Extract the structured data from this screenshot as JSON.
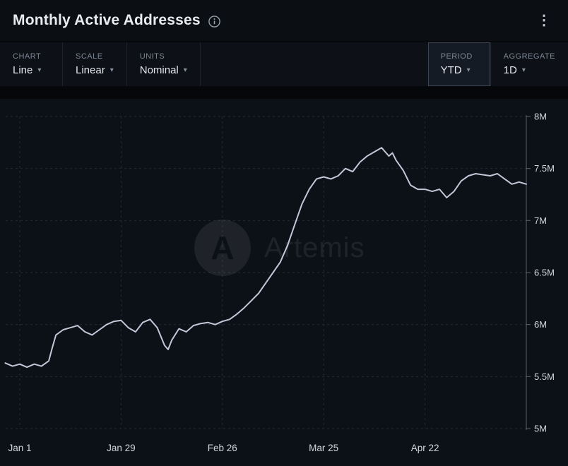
{
  "header": {
    "title": "Monthly Active Addresses"
  },
  "icons": {
    "chevron_down": "▾",
    "kebab": "⋮"
  },
  "toolbar": {
    "chart": {
      "label": "CHART",
      "value": "Line"
    },
    "scale": {
      "label": "SCALE",
      "value": "Linear"
    },
    "units": {
      "label": "UNITS",
      "value": "Nominal"
    },
    "period": {
      "label": "PERIOD",
      "value": "YTD"
    },
    "aggregate": {
      "label": "AGGREGATE",
      "value": "1D"
    }
  },
  "watermark": {
    "text": "Artemis"
  },
  "chart_data": {
    "type": "line",
    "title": "Monthly Active Addresses",
    "unit": "M",
    "grid": "dashed",
    "legend": "none",
    "line_color": "#c3c8d8",
    "y_range": [
      5,
      8
    ],
    "y_ticks": [
      {
        "value": 5,
        "label": "5M"
      },
      {
        "value": 5.5,
        "label": "5.5M"
      },
      {
        "value": 6,
        "label": "6M"
      },
      {
        "value": 6.5,
        "label": "6.5M"
      },
      {
        "value": 7,
        "label": "7M"
      },
      {
        "value": 7.5,
        "label": "7.5M"
      },
      {
        "value": 8,
        "label": "8M"
      }
    ],
    "x_ticks": [
      {
        "day": 0,
        "label": "Jan 1"
      },
      {
        "day": 28,
        "label": "Jan 29"
      },
      {
        "day": 56,
        "label": "Feb 26"
      },
      {
        "day": 84,
        "label": "Mar 25"
      },
      {
        "day": 112,
        "label": "Apr 22"
      }
    ],
    "series": [
      {
        "name": "Monthly Active Addresses (millions)",
        "points": [
          [
            -4,
            5.63
          ],
          [
            -2,
            5.6
          ],
          [
            0,
            5.62
          ],
          [
            2,
            5.59
          ],
          [
            4,
            5.62
          ],
          [
            6,
            5.6
          ],
          [
            8,
            5.65
          ],
          [
            9,
            5.78
          ],
          [
            10,
            5.9
          ],
          [
            12,
            5.95
          ],
          [
            14,
            5.97
          ],
          [
            16,
            5.99
          ],
          [
            18,
            5.93
          ],
          [
            20,
            5.9
          ],
          [
            22,
            5.95
          ],
          [
            24,
            6.0
          ],
          [
            26,
            6.03
          ],
          [
            28,
            6.04
          ],
          [
            30,
            5.97
          ],
          [
            32,
            5.93
          ],
          [
            34,
            6.02
          ],
          [
            36,
            6.05
          ],
          [
            38,
            5.97
          ],
          [
            40,
            5.8
          ],
          [
            41,
            5.76
          ],
          [
            42,
            5.85
          ],
          [
            44,
            5.96
          ],
          [
            46,
            5.93
          ],
          [
            48,
            5.99
          ],
          [
            50,
            6.01
          ],
          [
            52,
            6.02
          ],
          [
            54,
            6.0
          ],
          [
            56,
            6.03
          ],
          [
            58,
            6.05
          ],
          [
            60,
            6.1
          ],
          [
            62,
            6.16
          ],
          [
            64,
            6.23
          ],
          [
            66,
            6.3
          ],
          [
            68,
            6.4
          ],
          [
            70,
            6.5
          ],
          [
            72,
            6.6
          ],
          [
            74,
            6.76
          ],
          [
            76,
            6.96
          ],
          [
            78,
            7.16
          ],
          [
            80,
            7.3
          ],
          [
            82,
            7.4
          ],
          [
            84,
            7.42
          ],
          [
            86,
            7.4
          ],
          [
            88,
            7.43
          ],
          [
            90,
            7.5
          ],
          [
            92,
            7.47
          ],
          [
            94,
            7.56
          ],
          [
            96,
            7.62
          ],
          [
            98,
            7.66
          ],
          [
            100,
            7.7
          ],
          [
            101,
            7.66
          ],
          [
            102,
            7.62
          ],
          [
            103,
            7.65
          ],
          [
            104,
            7.58
          ],
          [
            106,
            7.48
          ],
          [
            108,
            7.34
          ],
          [
            110,
            7.3
          ],
          [
            112,
            7.3
          ],
          [
            114,
            7.28
          ],
          [
            116,
            7.3
          ],
          [
            118,
            7.22
          ],
          [
            120,
            7.28
          ],
          [
            122,
            7.38
          ],
          [
            124,
            7.43
          ],
          [
            126,
            7.45
          ],
          [
            128,
            7.44
          ],
          [
            130,
            7.43
          ],
          [
            132,
            7.45
          ],
          [
            134,
            7.4
          ],
          [
            136,
            7.35
          ],
          [
            138,
            7.37
          ],
          [
            140,
            7.35
          ]
        ]
      }
    ]
  }
}
